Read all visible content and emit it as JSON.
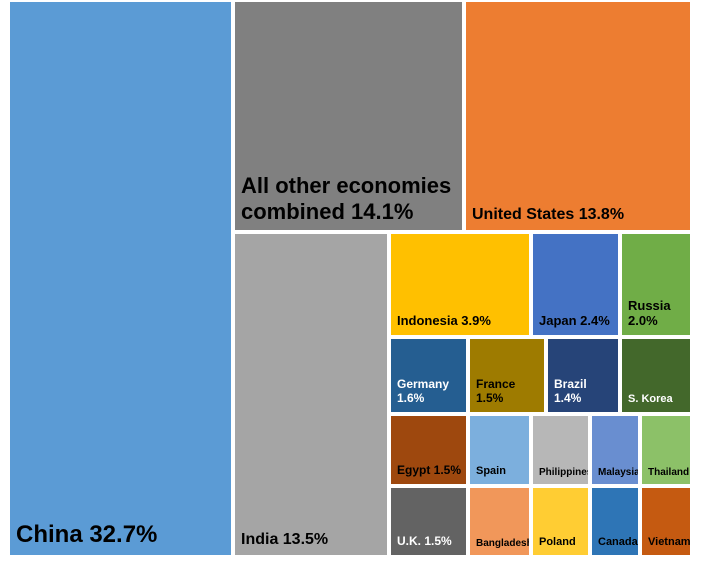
{
  "chart_data": {
    "type": "treemap",
    "title": "",
    "tiles": [
      {
        "id": "china",
        "label": "China 32.7%",
        "name": "China",
        "value": 32.7,
        "color": "#5B9BD5",
        "text_color": "#000000"
      },
      {
        "id": "other",
        "label": "All other economies\ncombined 14.1%",
        "name": "All other economies combined",
        "value": 14.1,
        "color": "#808080",
        "text_color": "#000000"
      },
      {
        "id": "us",
        "label": "United States 13.8%",
        "name": "United States",
        "value": 13.8,
        "color": "#ED7D31",
        "text_color": "#000000"
      },
      {
        "id": "india",
        "label": "India 13.5%",
        "name": "India",
        "value": 13.5,
        "color": "#A5A5A5",
        "text_color": "#000000"
      },
      {
        "id": "indonesia",
        "label": "Indonesia 3.9%",
        "name": "Indonesia",
        "value": 3.9,
        "color": "#FFC000",
        "text_color": "#000000"
      },
      {
        "id": "japan",
        "label": "Japan 2.4%",
        "name": "Japan",
        "value": 2.4,
        "color": "#4472C4",
        "text_color": "#000000"
      },
      {
        "id": "russia",
        "label": "Russia\n2.0%",
        "name": "Russia",
        "value": 2.0,
        "color": "#70AD47",
        "text_color": "#000000"
      },
      {
        "id": "germany",
        "label": "Germany\n1.6%",
        "name": "Germany",
        "value": 1.6,
        "color": "#255E91",
        "text_color": "#ffffff"
      },
      {
        "id": "france",
        "label": "France 1.5%",
        "name": "France",
        "value": 1.5,
        "color": "#9E7B00",
        "text_color": "#000000"
      },
      {
        "id": "brazil",
        "label": "Brazil 1.4%",
        "name": "Brazil",
        "value": 1.4,
        "color": "#264478",
        "text_color": "#ffffff"
      },
      {
        "id": "skorea",
        "label": "S. Korea",
        "name": "S. Korea",
        "value": null,
        "color": "#43682B",
        "text_color": "#ffffff"
      },
      {
        "id": "egypt",
        "label": "Egypt 1.5%",
        "name": "Egypt",
        "value": 1.5,
        "color": "#9E480E",
        "text_color": "#000000"
      },
      {
        "id": "spain",
        "label": "Spain",
        "name": "Spain",
        "value": null,
        "color": "#7CAFDD",
        "text_color": "#000000"
      },
      {
        "id": "philippines",
        "label": "Philippines",
        "name": "Philippines",
        "value": null,
        "color": "#B7B7B7",
        "text_color": "#000000"
      },
      {
        "id": "malaysia",
        "label": "Malaysia",
        "name": "Malaysia",
        "value": null,
        "color": "#698ED0",
        "text_color": "#000000"
      },
      {
        "id": "thailand",
        "label": "Thailand",
        "name": "Thailand",
        "value": null,
        "color": "#8CC168",
        "text_color": "#000000"
      },
      {
        "id": "uk",
        "label": "U.K. 1.5%",
        "name": "U.K.",
        "value": 1.5,
        "color": "#636363",
        "text_color": "#ffffff"
      },
      {
        "id": "bangladesh",
        "label": "Bangladesh",
        "name": "Bangladesh",
        "value": null,
        "color": "#F1975A",
        "text_color": "#000000"
      },
      {
        "id": "poland",
        "label": "Poland",
        "name": "Poland",
        "value": null,
        "color": "#FFCD33",
        "text_color": "#000000"
      },
      {
        "id": "canada",
        "label": "Canada",
        "name": "Canada",
        "value": null,
        "color": "#2E75B6",
        "text_color": "#000000"
      },
      {
        "id": "vietnam",
        "label": "Vietnam",
        "name": "Vietnam",
        "value": null,
        "color": "#C55A11",
        "text_color": "#000000"
      }
    ]
  }
}
